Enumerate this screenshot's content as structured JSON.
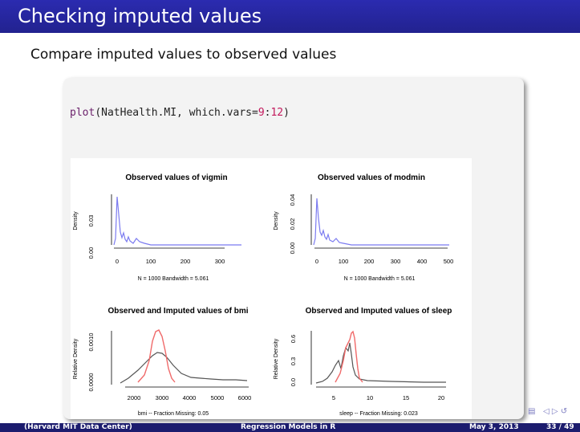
{
  "slide": {
    "title": "Checking imputed values",
    "subtitle": "Compare imputed values to observed values",
    "code": {
      "fn": "plot",
      "pre": "(NatHealth.MI, which.vars=",
      "num1": "9",
      "sep": ":",
      "num2": "12",
      "post": ")"
    }
  },
  "panels": [
    {
      "title": "Observed values of vigmin",
      "ylabel": "Density",
      "yticks": [
        "0.00",
        "0.03"
      ],
      "xticks": [
        "0",
        "100",
        "200",
        "300"
      ],
      "caption": "N = 1000   Bandwidth = 5.061"
    },
    {
      "title": "Observed values of modmin",
      "ylabel": "Density",
      "yticks": [
        "0.00",
        "0.02",
        "0.04"
      ],
      "xticks": [
        "0",
        "100",
        "200",
        "300",
        "400",
        "500"
      ],
      "caption": "N = 1000   Bandwidth = 5.061"
    },
    {
      "title": "Observed and Imputed values of bmi",
      "ylabel": "Relative Density",
      "yticks": [
        "0.0000",
        "0.0010"
      ],
      "xticks": [
        "2000",
        "3000",
        "4000",
        "5000",
        "6000"
      ],
      "caption": "bmi  --  Fraction Missing: 0.05"
    },
    {
      "title": "Observed and Imputed values of sleep",
      "ylabel": "Relative Density",
      "yticks": [
        "0.0",
        "0.3",
        "0.6"
      ],
      "xticks": [
        "5",
        "10",
        "15",
        "20"
      ],
      "caption": "sleep  --  Fraction Missing: 0.023"
    }
  ],
  "footer": {
    "author": "(Harvard MIT Data Center)",
    "course": "Regression Models in R",
    "date": "May 3, 2013",
    "page": "33 / 49"
  },
  "colors": {
    "title_bar": "#2525a0",
    "observed": "#7b7bf0",
    "imputed": "#f06a6a",
    "combined": "#555555"
  }
}
